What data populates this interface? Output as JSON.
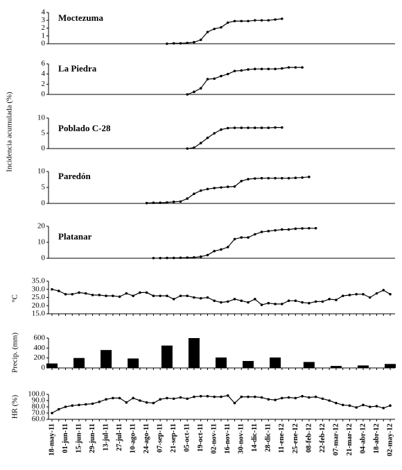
{
  "chart_data": {
    "type": "multi",
    "ylabel": "Incidencia acumulada (%)",
    "categories": [
      "18-may-11",
      null,
      "01-jun-11",
      null,
      "15-jun-11",
      null,
      "29-jun-11",
      null,
      "13-jul-11",
      null,
      "27-jul-11",
      null,
      "10-ago-11",
      null,
      "24-ago-11",
      null,
      "07-sep-11",
      null,
      "21-sep-11",
      null,
      "05-oct-11",
      null,
      "19-oct-11",
      null,
      "02-nov-11",
      null,
      "16-nov-11",
      null,
      "30-nov-11",
      null,
      "14-dic-11",
      null,
      "28-dic-11",
      null,
      "11-ene-12",
      null,
      "25-ene-12",
      null,
      "08-feb-12",
      null,
      "22-feb-12",
      null,
      "07-mar-12",
      null,
      "21-mar-12",
      null,
      "04-abr-12",
      null,
      "18-abr-12",
      null,
      "02-may-12"
    ],
    "panels": [
      {
        "type": "line",
        "name": "Moctezuma",
        "color": "#000000",
        "ylim": [
          0,
          4
        ],
        "yticks": [
          0,
          1,
          2,
          3,
          4
        ],
        "values": [
          null,
          null,
          null,
          null,
          null,
          null,
          null,
          null,
          null,
          null,
          null,
          null,
          null,
          null,
          null,
          null,
          null,
          0,
          0.05,
          0.05,
          0.1,
          0.2,
          0.5,
          1.5,
          1.9,
          2.1,
          2.7,
          2.9,
          2.9,
          2.9,
          3,
          3,
          3,
          3.1,
          3.2,
          null,
          null,
          null,
          null,
          null,
          null,
          null,
          null,
          null,
          null,
          null,
          null,
          null,
          null,
          null,
          null
        ]
      },
      {
        "type": "line",
        "name": "La Piedra",
        "color": "#000000",
        "ylim": [
          0,
          6
        ],
        "yticks": [
          0,
          2,
          4,
          6
        ],
        "values": [
          null,
          null,
          null,
          null,
          null,
          null,
          null,
          null,
          null,
          null,
          null,
          null,
          null,
          null,
          null,
          null,
          null,
          null,
          null,
          null,
          0,
          0.5,
          1.2,
          3,
          3.1,
          3.6,
          4,
          4.6,
          4.7,
          4.9,
          5,
          5,
          5,
          5,
          5.1,
          5.3,
          5.3,
          5.3,
          null,
          null,
          null,
          null,
          null,
          null,
          null,
          null,
          null,
          null,
          null,
          null,
          null
        ]
      },
      {
        "type": "line",
        "name": "Poblado C-28",
        "color": "#000000",
        "ylim": [
          0,
          10
        ],
        "yticks": [
          0,
          5,
          10
        ],
        "values": [
          null,
          null,
          null,
          null,
          null,
          null,
          null,
          null,
          null,
          null,
          null,
          null,
          null,
          null,
          null,
          null,
          null,
          null,
          null,
          null,
          0,
          0.3,
          1.8,
          3.5,
          5,
          6.2,
          6.7,
          6.8,
          6.8,
          6.8,
          6.8,
          6.8,
          6.8,
          6.9,
          6.9,
          null,
          null,
          null,
          null,
          null,
          null,
          null,
          null,
          null,
          null,
          null,
          null,
          null,
          null,
          null,
          null
        ]
      },
      {
        "type": "line",
        "name": "Paredón",
        "color": "#000000",
        "ylim": [
          0,
          10
        ],
        "yticks": [
          0,
          5,
          10
        ],
        "values": [
          null,
          null,
          null,
          null,
          null,
          null,
          null,
          null,
          null,
          null,
          null,
          null,
          null,
          null,
          0.1,
          0.2,
          0.2,
          0.3,
          0.5,
          0.6,
          1.5,
          3,
          4,
          4.5,
          4.8,
          5,
          5.2,
          5.3,
          7,
          7.6,
          7.8,
          7.9,
          7.9,
          7.9,
          7.9,
          7.9,
          8,
          8.1,
          8.3,
          null,
          null,
          null,
          null,
          null,
          null,
          null,
          null,
          null,
          null,
          null,
          null
        ]
      },
      {
        "type": "line",
        "name": "Platanar",
        "color": "#000000",
        "ylim": [
          0,
          20
        ],
        "yticks": [
          0,
          10,
          20
        ],
        "values": [
          null,
          null,
          null,
          null,
          null,
          null,
          null,
          null,
          null,
          null,
          null,
          null,
          null,
          null,
          null,
          0.1,
          0.1,
          0.2,
          0.2,
          0.3,
          0.4,
          0.5,
          1,
          2,
          4.5,
          5.5,
          7,
          12,
          13,
          13,
          15,
          16.5,
          17,
          17.5,
          18,
          18,
          18.5,
          18.7,
          18.8,
          18.8,
          null,
          null,
          null,
          null,
          null,
          null,
          null,
          null,
          null,
          null,
          null
        ]
      },
      {
        "type": "line",
        "ylabel": "°C",
        "color": "#000000",
        "ylim": [
          15,
          35
        ],
        "yticks": [
          {
            "value": 15,
            "label": "15.0"
          },
          {
            "value": 20,
            "label": "20.0"
          },
          {
            "value": 25,
            "label": "25.0"
          },
          {
            "value": 30,
            "label": "30.0"
          },
          {
            "value": 35,
            "label": "35.0"
          }
        ],
        "values": [
          30,
          29,
          27,
          27,
          28,
          27.5,
          26.5,
          26.5,
          26,
          26,
          25.5,
          27.5,
          26,
          28,
          28,
          26,
          26,
          26,
          24,
          26,
          26,
          25,
          24.5,
          25,
          23,
          22,
          22.5,
          24,
          23,
          22,
          24,
          20.5,
          21.5,
          21,
          21,
          23,
          23,
          22,
          21.5,
          22.5,
          22.5,
          24,
          23.5,
          26,
          26.5,
          27,
          27,
          25,
          27.5,
          29.5,
          27
        ]
      },
      {
        "type": "bar",
        "ylabel": "Precip. (mm)",
        "color": "#000000",
        "ylim": [
          0,
          600
        ],
        "yticks": [
          0,
          200,
          400,
          600
        ],
        "values": [
          90,
          null,
          null,
          null,
          200,
          null,
          null,
          null,
          360,
          null,
          null,
          null,
          190,
          null,
          null,
          null,
          null,
          450,
          null,
          null,
          null,
          600,
          null,
          null,
          null,
          210,
          null,
          null,
          null,
          140,
          null,
          null,
          null,
          210,
          null,
          null,
          null,
          null,
          120,
          null,
          null,
          null,
          40,
          null,
          null,
          null,
          50,
          null,
          null,
          null,
          80
        ]
      },
      {
        "type": "line",
        "ylabel": "HR (%)",
        "color": "#000000",
        "ylim": [
          60,
          100
        ],
        "yticks": [
          {
            "value": 60,
            "label": "60.0"
          },
          {
            "value": 70,
            "label": "70.0"
          },
          {
            "value": 80,
            "label": "80.0"
          },
          {
            "value": 90,
            "label": "90.0"
          },
          {
            "value": 100,
            "label": "100.0"
          }
        ],
        "values": [
          70,
          76,
          80,
          82,
          83,
          84,
          85,
          88,
          92,
          94,
          94,
          87,
          94,
          90,
          87,
          86,
          92,
          94,
          93,
          95,
          93,
          96,
          97,
          97,
          96,
          96,
          98,
          86,
          96,
          96,
          96,
          95,
          92,
          91,
          94,
          95,
          94,
          97,
          95,
          96,
          93,
          90,
          86,
          83,
          82,
          79,
          83,
          80,
          81,
          78,
          82
        ]
      }
    ]
  }
}
